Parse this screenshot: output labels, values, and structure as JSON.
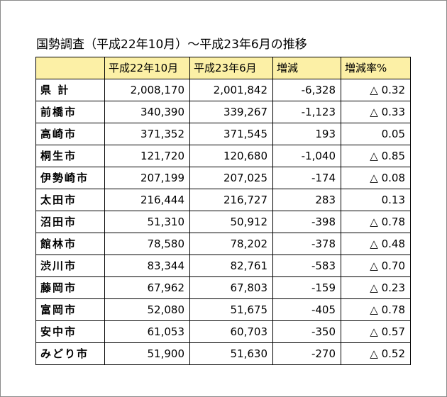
{
  "title": "国勢調査（平成22年10月）～平成23年6月の推移",
  "header": {
    "col0": "",
    "col1": "平成22年10月",
    "col2": "平成23年6月",
    "col3": "増減",
    "col4": "増減率%"
  },
  "rows": [
    {
      "name": "県 計",
      "h22": "2,008,170",
      "h23": "2,001,842",
      "change": "-6,328",
      "rate": "△ 0.32"
    },
    {
      "name": "前橋市",
      "h22": "340,390",
      "h23": "339,267",
      "change": "-1,123",
      "rate": "△ 0.33"
    },
    {
      "name": "高崎市",
      "h22": "371,352",
      "h23": "371,545",
      "change": "193",
      "rate": "0.05"
    },
    {
      "name": "桐生市",
      "h22": "121,720",
      "h23": "120,680",
      "change": "-1,040",
      "rate": "△ 0.85"
    },
    {
      "name": "伊勢崎市",
      "h22": "207,199",
      "h23": "207,025",
      "change": "-174",
      "rate": "△ 0.08"
    },
    {
      "name": "太田市",
      "h22": "216,444",
      "h23": "216,727",
      "change": "283",
      "rate": "0.13"
    },
    {
      "name": "沼田市",
      "h22": "51,310",
      "h23": "50,912",
      "change": "-398",
      "rate": "△ 0.78"
    },
    {
      "name": "館林市",
      "h22": "78,580",
      "h23": "78,202",
      "change": "-378",
      "rate": "△ 0.48"
    },
    {
      "name": "渋川市",
      "h22": "83,344",
      "h23": "82,761",
      "change": "-583",
      "rate": "△ 0.70"
    },
    {
      "name": "藤岡市",
      "h22": "67,962",
      "h23": "67,803",
      "change": "-159",
      "rate": "△ 0.23"
    },
    {
      "name": "富岡市",
      "h22": "52,080",
      "h23": "51,675",
      "change": "-405",
      "rate": "△ 0.78"
    },
    {
      "name": "安中市",
      "h22": "61,053",
      "h23": "60,703",
      "change": "-350",
      "rate": "△ 0.57"
    },
    {
      "name": "みどり市",
      "h22": "51,900",
      "h23": "51,630",
      "change": "-270",
      "rate": "△ 0.52"
    }
  ]
}
